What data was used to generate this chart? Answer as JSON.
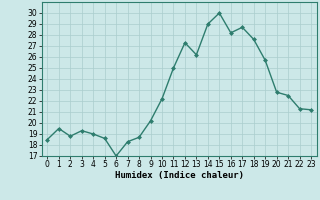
{
  "x": [
    0,
    1,
    2,
    3,
    4,
    5,
    6,
    7,
    8,
    9,
    10,
    11,
    12,
    13,
    14,
    15,
    16,
    17,
    18,
    19,
    20,
    21,
    22,
    23
  ],
  "y": [
    18.5,
    19.5,
    18.8,
    19.3,
    19.0,
    18.6,
    17.0,
    18.3,
    18.7,
    20.2,
    22.2,
    25.0,
    27.3,
    26.2,
    29.0,
    30.0,
    28.2,
    28.7,
    27.6,
    25.7,
    22.8,
    22.5,
    21.3,
    21.2
  ],
  "line_color": "#2e7d6e",
  "marker": "D",
  "markersize": 2.0,
  "linewidth": 1.0,
  "bg_color": "#cce8e8",
  "grid_color": "#aacece",
  "xlabel": "Humidex (Indice chaleur)",
  "xlabel_fontsize": 6.5,
  "tick_fontsize": 5.5,
  "ylim": [
    17,
    31
  ],
  "yticks": [
    17,
    18,
    19,
    20,
    21,
    22,
    23,
    24,
    25,
    26,
    27,
    28,
    29,
    30
  ],
  "xlim": [
    -0.5,
    23.5
  ],
  "xticks": [
    0,
    1,
    2,
    3,
    4,
    5,
    6,
    7,
    8,
    9,
    10,
    11,
    12,
    13,
    14,
    15,
    16,
    17,
    18,
    19,
    20,
    21,
    22,
    23
  ],
  "spine_color": "#2e7d6e"
}
